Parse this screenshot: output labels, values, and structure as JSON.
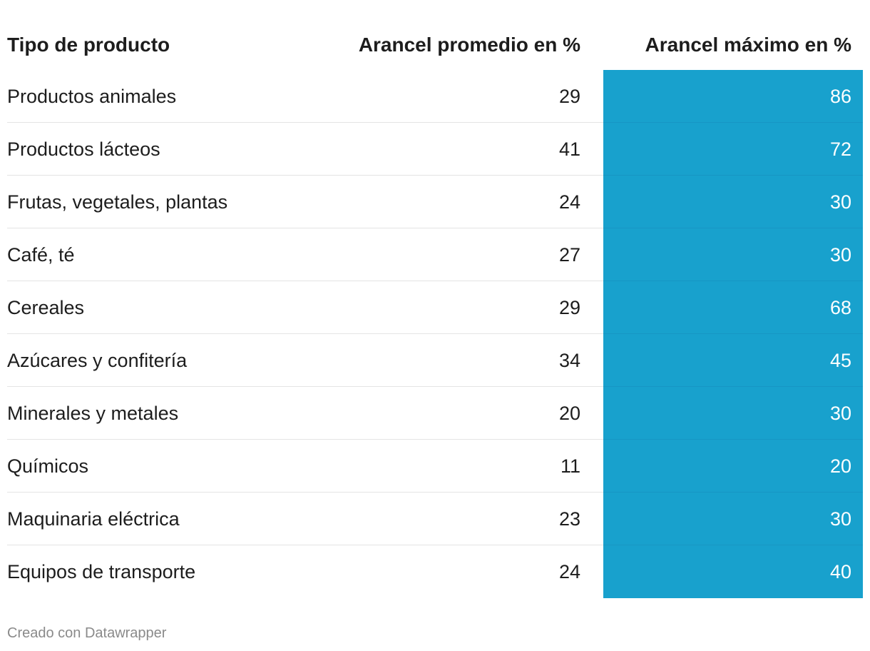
{
  "chart_data": {
    "type": "table",
    "columns": [
      "Tipo de producto",
      "Arancel promedio en %",
      "Arancel máximo en %"
    ],
    "rows": [
      {
        "name": "Productos animales",
        "avg": "29",
        "max": "86"
      },
      {
        "name": "Productos lácteos",
        "avg": "41",
        "max": "72"
      },
      {
        "name": "Frutas, vegetales, plantas",
        "avg": "24",
        "max": "30"
      },
      {
        "name": "Café, té",
        "avg": "27",
        "max": "30"
      },
      {
        "name": "Cereales",
        "avg": "29",
        "max": "68"
      },
      {
        "name": "Azúcares y confitería",
        "avg": "34",
        "max": "45"
      },
      {
        "name": "Minerales y metales",
        "avg": "20",
        "max": "30"
      },
      {
        "name": "Químicos",
        "avg": "11",
        "max": "20"
      },
      {
        "name": "Maquinaria eléctrica",
        "avg": "23",
        "max": "30"
      },
      {
        "name": "Equipos de transporte",
        "avg": "24",
        "max": "40"
      }
    ],
    "highlight_color": "#18a1cd"
  },
  "footer": "Creado con Datawrapper"
}
